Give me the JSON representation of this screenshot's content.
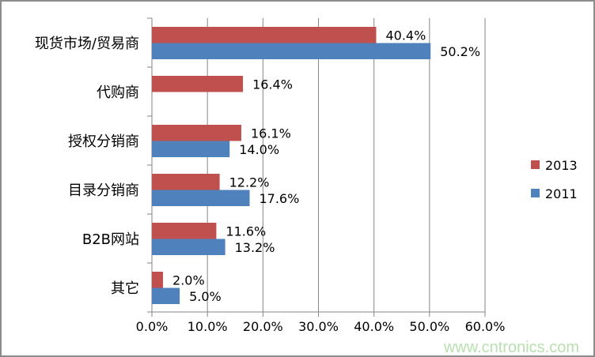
{
  "chart_data": {
    "type": "bar",
    "orientation": "horizontal",
    "categories": [
      "现货市场/贸易商",
      "代购商",
      "授权分销商",
      "目录分销商",
      "B2B网站",
      "其它"
    ],
    "series": [
      {
        "name": "2013",
        "color": "#C0504D",
        "values": [
          40.4,
          16.4,
          16.1,
          12.2,
          11.6,
          2.0
        ]
      },
      {
        "name": "2011",
        "color": "#4F81BD",
        "values": [
          50.2,
          null,
          14.0,
          17.6,
          13.2,
          5.0
        ]
      }
    ],
    "xlim": [
      0,
      60
    ],
    "xticks": [
      "0.0%",
      "10.0%",
      "20.0%",
      "30.0%",
      "40.0%",
      "50.0%",
      "60.0%"
    ],
    "grid": "vertical",
    "legend": "right",
    "value_format": "percent-1dp"
  },
  "watermark": "www.cntronics.com"
}
